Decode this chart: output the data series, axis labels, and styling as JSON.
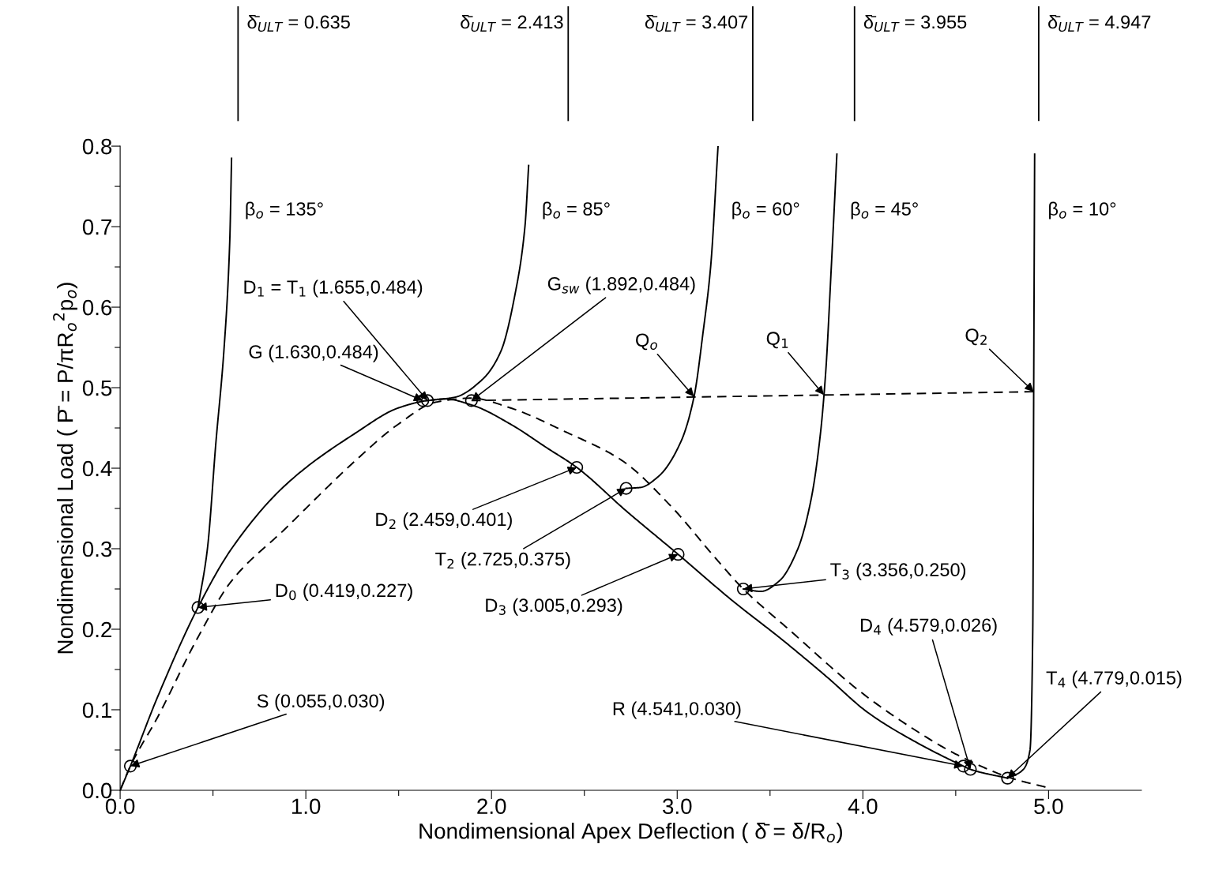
{
  "chart_data": {
    "type": "line",
    "ref_lines": [
      {
        "axis": "x",
        "value": 0.635,
        "label": "δ̄$_{ULT}$ = 0.635",
        "color": "#000000",
        "line_style": "solid"
      },
      {
        "axis": "x",
        "value": 2.413,
        "label": "δ̄$_{ULT}$ = 2.413",
        "color": "#000000",
        "line_style": "solid"
      },
      {
        "axis": "x",
        "value": 3.407,
        "label": "δ̄$_{ULT}$ = 3.407",
        "color": "#000000",
        "line_style": "solid"
      },
      {
        "axis": "x",
        "value": 3.955,
        "label": "δ̄$_{ULT}$ = 3.955",
        "color": "#000000",
        "line_style": "solid"
      },
      {
        "axis": "x",
        "value": 4.947,
        "label": "δ̄$_{ULT}$ = 4.947",
        "color": "#000000",
        "line_style": "solid"
      }
    ],
    "xlabel": "Nondimensional Apex Deflection ( δ̄ = δ/R$_{o}$)",
    "ylabel": "Nondimensional Load ( P̄ = P/πR$_{o}$$^{2}$p$_{o}$)",
    "xlim": [
      0,
      5.5
    ],
    "ylim": [
      0,
      0.8
    ],
    "xticks": [
      {
        "value": 0,
        "label": "0.0"
      },
      {
        "value": 0.5,
        "label": null
      },
      {
        "value": 1,
        "label": "1.0"
      },
      {
        "value": 1.5,
        "label": null
      },
      {
        "value": 2,
        "label": "2.0"
      },
      {
        "value": 2.5,
        "label": null
      },
      {
        "value": 3,
        "label": "3.0"
      },
      {
        "value": 3.5,
        "label": null
      },
      {
        "value": 4,
        "label": "4.0"
      },
      {
        "value": 4.5,
        "label": null
      },
      {
        "value": 5,
        "label": "5.0"
      }
    ],
    "yticks": [
      {
        "value": 0,
        "label": "0.0"
      },
      {
        "value": 0.05,
        "label": null
      },
      {
        "value": 0.1,
        "label": "0.1"
      },
      {
        "value": 0.15,
        "label": null
      },
      {
        "value": 0.2,
        "label": "0.2"
      },
      {
        "value": 0.25,
        "label": null
      },
      {
        "value": 0.3,
        "label": "0.3"
      },
      {
        "value": 0.35,
        "label": null
      },
      {
        "value": 0.4,
        "label": "0.4"
      },
      {
        "value": 0.45,
        "label": null
      },
      {
        "value": 0.5,
        "label": "0.5"
      },
      {
        "value": 0.55,
        "label": null
      },
      {
        "value": 0.6,
        "label": "0.6"
      },
      {
        "value": 0.65,
        "label": null
      },
      {
        "value": 0.7,
        "label": "0.7"
      },
      {
        "value": 0.75,
        "label": null
      },
      {
        "value": 0.8,
        "label": "0.8"
      }
    ],
    "grid": false,
    "legend": false,
    "series": [
      {
        "type": "line",
        "line_style": "solid",
        "color": "#000000",
        "x": [
          0,
          0.055,
          0.2,
          0.419,
          0.6,
          0.89,
          1.27,
          1.5,
          1.655,
          1.75,
          1.9,
          2.1,
          2.3,
          2.459,
          2.725,
          3.005,
          3.3,
          3.56,
          3.8,
          4.03,
          4.3,
          4.541,
          4.579,
          4.779
        ],
        "values": [
          0,
          0.03,
          0.115,
          0.227,
          0.3,
          0.379,
          0.444,
          0.475,
          0.484,
          0.486,
          0.478,
          0.455,
          0.425,
          0.401,
          0.347,
          0.293,
          0.235,
          0.188,
          0.142,
          0.096,
          0.058,
          0.03,
          0.026,
          0.015
        ]
      },
      {
        "type": "line",
        "line_style": "dashed",
        "color": "#000000",
        "x": [
          0,
          0.055,
          0.2,
          0.419,
          0.6,
          0.89,
          1.27,
          1.5,
          1.7,
          1.892,
          2.1,
          2.4,
          2.7,
          2.97,
          3.2,
          3.356,
          3.6,
          4.0,
          4.3,
          4.5,
          4.8,
          5.0
        ],
        "values": [
          0,
          0.03,
          0.09,
          0.19,
          0.26,
          0.325,
          0.41,
          0.455,
          0.482,
          0.487,
          0.475,
          0.445,
          0.41,
          0.352,
          0.29,
          0.25,
          0.2,
          0.12,
          0.072,
          0.045,
          0.015,
          0.003
        ]
      },
      {
        "type": "line",
        "line_style": "solid",
        "color": "#000000",
        "name": "β$_{o}$ = 135°",
        "x": [
          0.419,
          0.47,
          0.515,
          0.56,
          0.59,
          0.6
        ],
        "values": [
          0.227,
          0.3,
          0.43,
          0.55,
          0.68,
          0.785
        ]
      },
      {
        "type": "line",
        "line_style": "solid",
        "color": "#000000",
        "name": "β$_{o}$ = 85°",
        "x": [
          1.655,
          1.8,
          1.95,
          2.05,
          2.13,
          2.18,
          2.2
        ],
        "values": [
          0.484,
          0.488,
          0.51,
          0.545,
          0.62,
          0.7,
          0.776
        ]
      },
      {
        "type": "line",
        "line_style": "solid",
        "color": "#000000",
        "name": "β$_{o}$ = 60°",
        "x": [
          2.725,
          2.8,
          2.9,
          3.02,
          3.09,
          3.14,
          3.18,
          3.22
        ],
        "values": [
          0.375,
          0.376,
          0.39,
          0.433,
          0.488,
          0.57,
          0.65,
          0.8
        ]
      },
      {
        "type": "line",
        "line_style": "solid",
        "color": "#000000",
        "name": "β$_{o}$ = 45°",
        "x": [
          3.356,
          3.45,
          3.55,
          3.65,
          3.72,
          3.77,
          3.8,
          3.83,
          3.86
        ],
        "values": [
          0.25,
          0.247,
          0.26,
          0.3,
          0.36,
          0.44,
          0.52,
          0.65,
          0.79
        ]
      },
      {
        "type": "line",
        "line_style": "solid",
        "color": "#000000",
        "name": "β$_{o}$ = 10°",
        "x": [
          4.779,
          4.86,
          4.9,
          4.915,
          4.92,
          4.925
        ],
        "values": [
          0.015,
          0.025,
          0.05,
          0.2,
          0.5,
          0.79
        ]
      },
      {
        "type": "line",
        "line_style": "dashed",
        "color": "#000000",
        "x": [
          1.892,
          4.92
        ],
        "values": [
          0.484,
          0.495
        ]
      },
      {
        "type": "scatter",
        "marker": "circle",
        "color": "#000000",
        "x": [
          0.055,
          0.419,
          1.63,
          1.655,
          1.892,
          2.459,
          2.725,
          3.005,
          3.356,
          4.541,
          4.579,
          4.779
        ],
        "values": [
          0.03,
          0.227,
          0.484,
          0.484,
          0.484,
          0.401,
          0.375,
          0.293,
          0.25,
          0.03,
          0.026,
          0.015
        ]
      }
    ],
    "annotations": [
      {
        "text": "S (0.055,0.030)",
        "x": 0.055,
        "y": 0.03
      },
      {
        "text": "D$_{0}$ (0.419,0.227)",
        "x": 0.419,
        "y": 0.227
      },
      {
        "text": "G (1.630,0.484)",
        "x": 1.63,
        "y": 0.484
      },
      {
        "text": "D$_{1}$ = T$_{1}$ (1.655,0.484)",
        "x": 1.655,
        "y": 0.484
      },
      {
        "text": "G$_{sw}$ (1.892,0.484)",
        "x": 1.892,
        "y": 0.484
      },
      {
        "text": "Q$_{o}$",
        "x": 3.09,
        "y": 0.489
      },
      {
        "text": "Q$_{1}$",
        "x": 3.79,
        "y": 0.491
      },
      {
        "text": "Q$_{2}$",
        "x": 4.92,
        "y": 0.495
      },
      {
        "text": "D$_{2}$ (2.459,0.401)",
        "x": 2.459,
        "y": 0.401
      },
      {
        "text": "T$_{2}$ (2.725,0.375)",
        "x": 2.725,
        "y": 0.375
      },
      {
        "text": "D$_{3}$ (3.005,0.293)",
        "x": 3.005,
        "y": 0.293
      },
      {
        "text": "T$_{3}$ (3.356,0.250)",
        "x": 3.356,
        "y": 0.25
      },
      {
        "text": "R (4.541,0.030)",
        "x": 4.541,
        "y": 0.03
      },
      {
        "text": "D$_{4}$ (4.579,0.026)",
        "x": 4.579,
        "y": 0.026
      },
      {
        "text": "T$_{4}$ (4.779,0.015)",
        "x": 4.779,
        "y": 0.015
      }
    ]
  }
}
